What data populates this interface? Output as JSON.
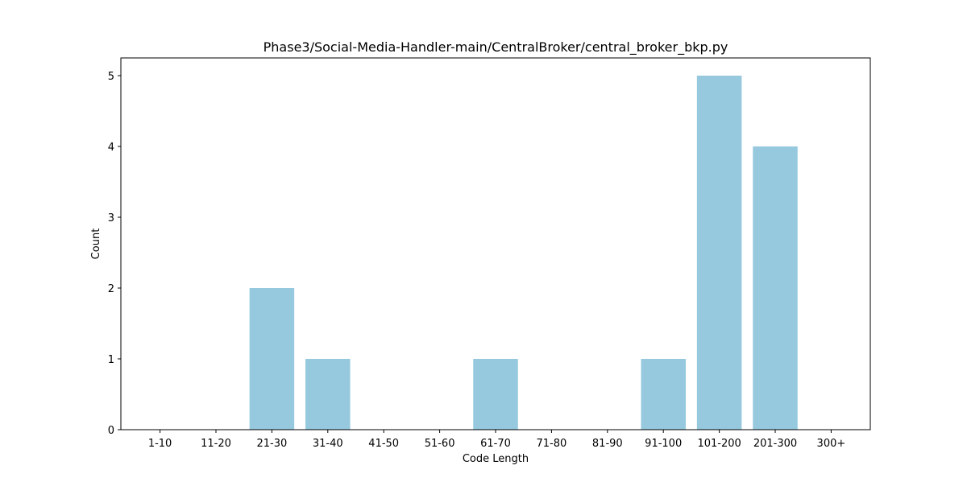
{
  "chart_data": {
    "type": "bar",
    "title": "Phase3/Social-Media-Handler-main/CentralBroker/central_broker_bkp.py",
    "xlabel": "Code Length",
    "ylabel": "Count",
    "categories": [
      "1-10",
      "11-20",
      "21-30",
      "31-40",
      "41-50",
      "51-60",
      "61-70",
      "71-80",
      "81-90",
      "91-100",
      "101-200",
      "201-300",
      "300+"
    ],
    "values": [
      0,
      0,
      2,
      1,
      0,
      0,
      1,
      0,
      0,
      1,
      5,
      4,
      0
    ],
    "ylim": [
      0,
      5.25
    ],
    "yticks": [
      0,
      1,
      2,
      3,
      4,
      5
    ],
    "grid": false,
    "legend": "none",
    "colors": {
      "bar": "#96c9de",
      "axis": "#000000",
      "background": "#ffffff"
    }
  }
}
